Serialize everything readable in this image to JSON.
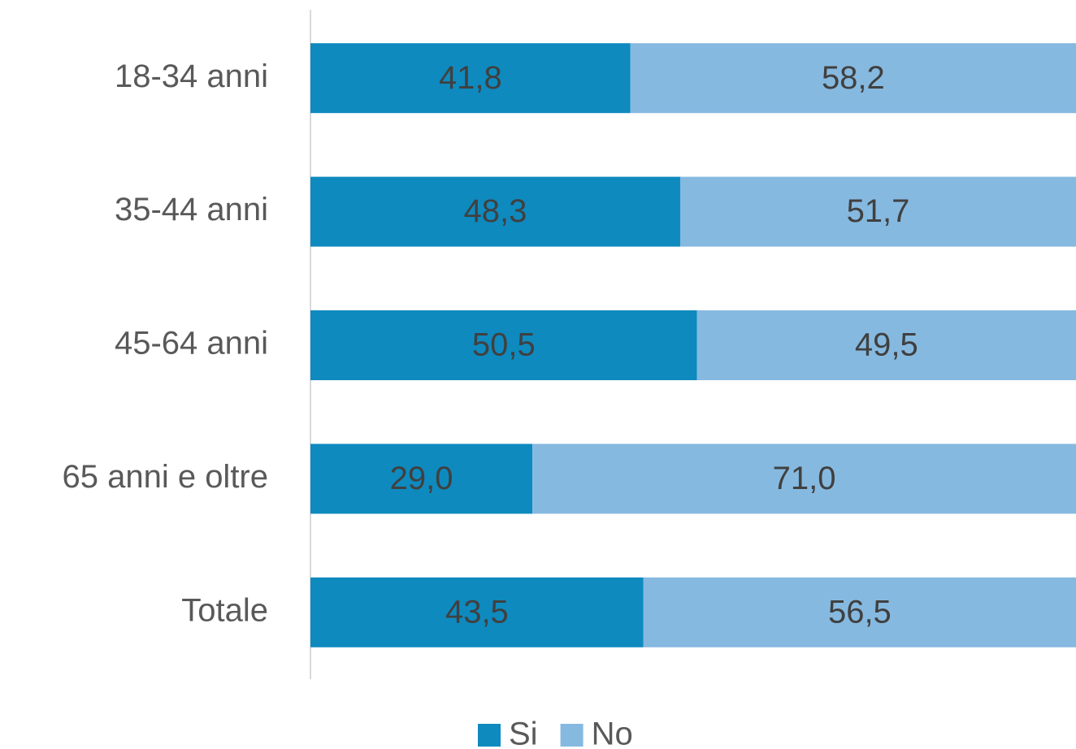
{
  "chart_data": {
    "type": "bar",
    "orientation": "horizontal",
    "stacked": true,
    "categories": [
      "18-34 anni",
      "35-44 anni",
      "45-64 anni",
      "65 anni e oltre",
      "Totale"
    ],
    "series": [
      {
        "name": "Si",
        "color": "#0e8abf",
        "values": [
          41.8,
          48.3,
          50.5,
          29.0,
          43.5
        ],
        "value_labels": [
          "41,8",
          "48,3",
          "50,5",
          "29,0",
          "43,5"
        ]
      },
      {
        "name": "No",
        "color": "#86b9e0",
        "values": [
          58.2,
          51.7,
          49.5,
          71.0,
          56.5
        ],
        "value_labels": [
          "58,2",
          "51,7",
          "49,5",
          "71,0",
          "56,5"
        ]
      }
    ],
    "xlim": [
      0,
      100
    ],
    "legend": "bottom"
  }
}
